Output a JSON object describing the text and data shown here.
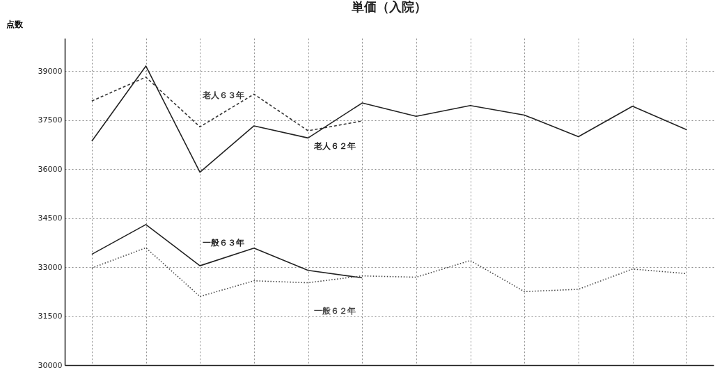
{
  "chart_data": {
    "type": "line",
    "title": "単価（入院）",
    "ylabel": "点数",
    "categories": [
      null,
      null,
      null,
      null,
      null,
      null,
      null,
      null,
      null,
      null,
      null,
      null
    ],
    "ylim": [
      30000,
      40000
    ],
    "yticks": [
      30000,
      31500,
      33000,
      34500,
      36000,
      37500,
      39000
    ],
    "grid": true,
    "tick_labels": "y",
    "marker": "none",
    "series": [
      {
        "name": "老人６３年",
        "color": "#333333",
        "line_style": "dashed",
        "values": [
          38080,
          38810,
          37290,
          38290,
          37170,
          37470,
          null,
          null,
          null,
          null,
          null,
          null
        ]
      },
      {
        "name": "老人６２年",
        "color": "#222222",
        "line_style": "solid",
        "values": [
          36850,
          39150,
          35900,
          37320,
          36950,
          38020,
          37610,
          37940,
          37650,
          36990,
          37920,
          37200
        ]
      },
      {
        "name": "一般６３年",
        "color": "#222222",
        "line_style": "solid",
        "values": [
          33390,
          34300,
          33040,
          33580,
          32900,
          32670,
          null,
          null,
          null,
          null,
          null,
          null
        ]
      },
      {
        "name": "一般６２年",
        "color": "#444444",
        "line_style": "dotted",
        "values": [
          32970,
          33590,
          32100,
          32580,
          32520,
          32730,
          32690,
          33200,
          32250,
          32320,
          32940,
          32800
        ]
      }
    ]
  }
}
